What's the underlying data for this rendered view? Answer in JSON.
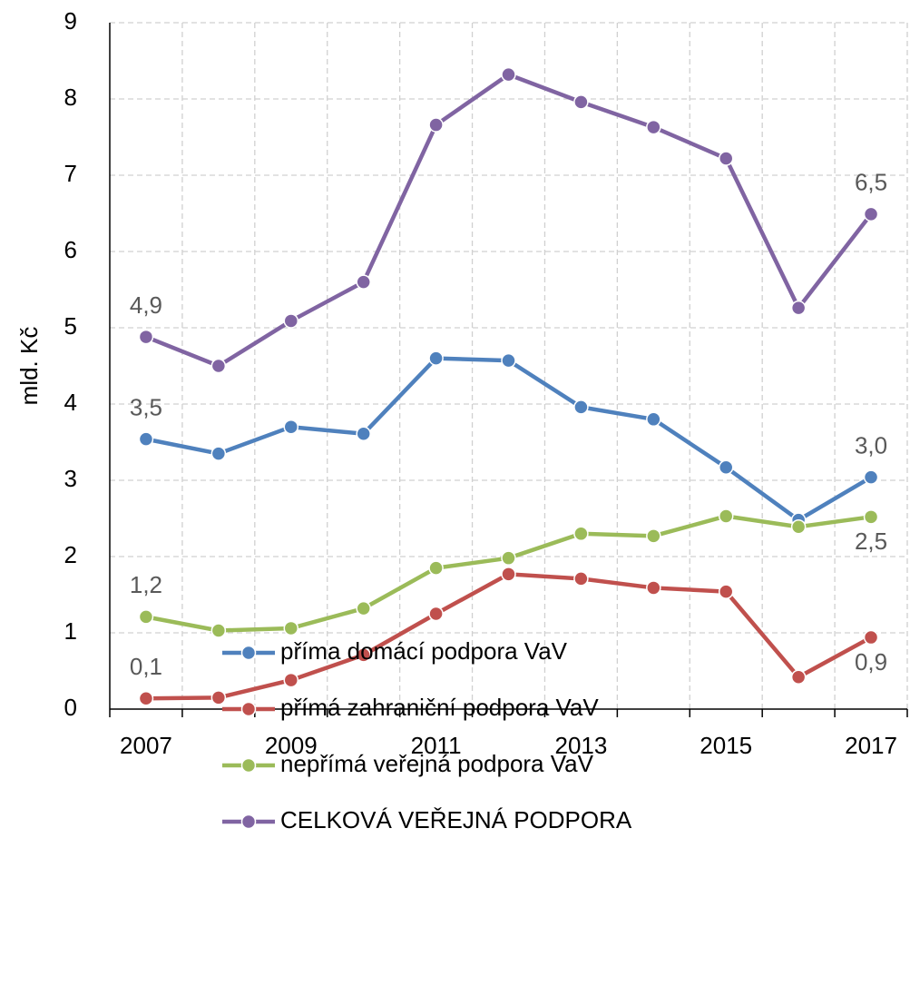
{
  "chart_data": {
    "type": "line",
    "y_label": "mld. Kč",
    "categories": [
      "2007",
      null,
      "2009",
      null,
      "2011",
      null,
      "2013",
      null,
      "2015",
      null,
      "2017"
    ],
    "ylim": [
      0,
      9
    ],
    "yticks": [
      0,
      1,
      2,
      3,
      4,
      5,
      6,
      7,
      8,
      9
    ],
    "grid": true,
    "legend": "bottom",
    "series": [
      {
        "name": "příma domácí podpora VaV",
        "color": "#4f81bd",
        "values": [
          3.54,
          3.35,
          3.7,
          3.61,
          4.6,
          4.57,
          3.96,
          3.8,
          3.17,
          2.48,
          3.04
        ],
        "value_labels": [
          "3,5",
          null,
          null,
          null,
          null,
          null,
          null,
          null,
          null,
          null,
          "3,0"
        ]
      },
      {
        "name": "přímá zahraniční podpora VaV",
        "color": "#c0504d",
        "values": [
          0.14,
          0.15,
          0.38,
          0.71,
          1.25,
          1.77,
          1.71,
          1.59,
          1.54,
          0.42,
          0.94
        ],
        "value_labels": [
          "0,1",
          null,
          null,
          null,
          null,
          null,
          null,
          null,
          null,
          null,
          "0,9"
        ]
      },
      {
        "name": "nepřímá veřejná podpora VaV",
        "color": "#9bbb59",
        "values": [
          1.21,
          1.03,
          1.06,
          1.32,
          1.85,
          1.98,
          2.3,
          2.27,
          2.53,
          2.39,
          2.52
        ],
        "value_labels": [
          "1,2",
          null,
          null,
          null,
          null,
          null,
          null,
          null,
          null,
          null,
          "2,5"
        ]
      },
      {
        "name": "CELKOVÁ VEŘEJNÁ PODPORA",
        "color": "#8064a2",
        "values": [
          4.88,
          4.5,
          5.09,
          5.6,
          7.66,
          8.32,
          7.96,
          7.63,
          7.22,
          5.26,
          6.49
        ],
        "value_labels": [
          "4,9",
          null,
          null,
          null,
          null,
          null,
          null,
          null,
          null,
          null,
          "6,5"
        ]
      }
    ]
  }
}
